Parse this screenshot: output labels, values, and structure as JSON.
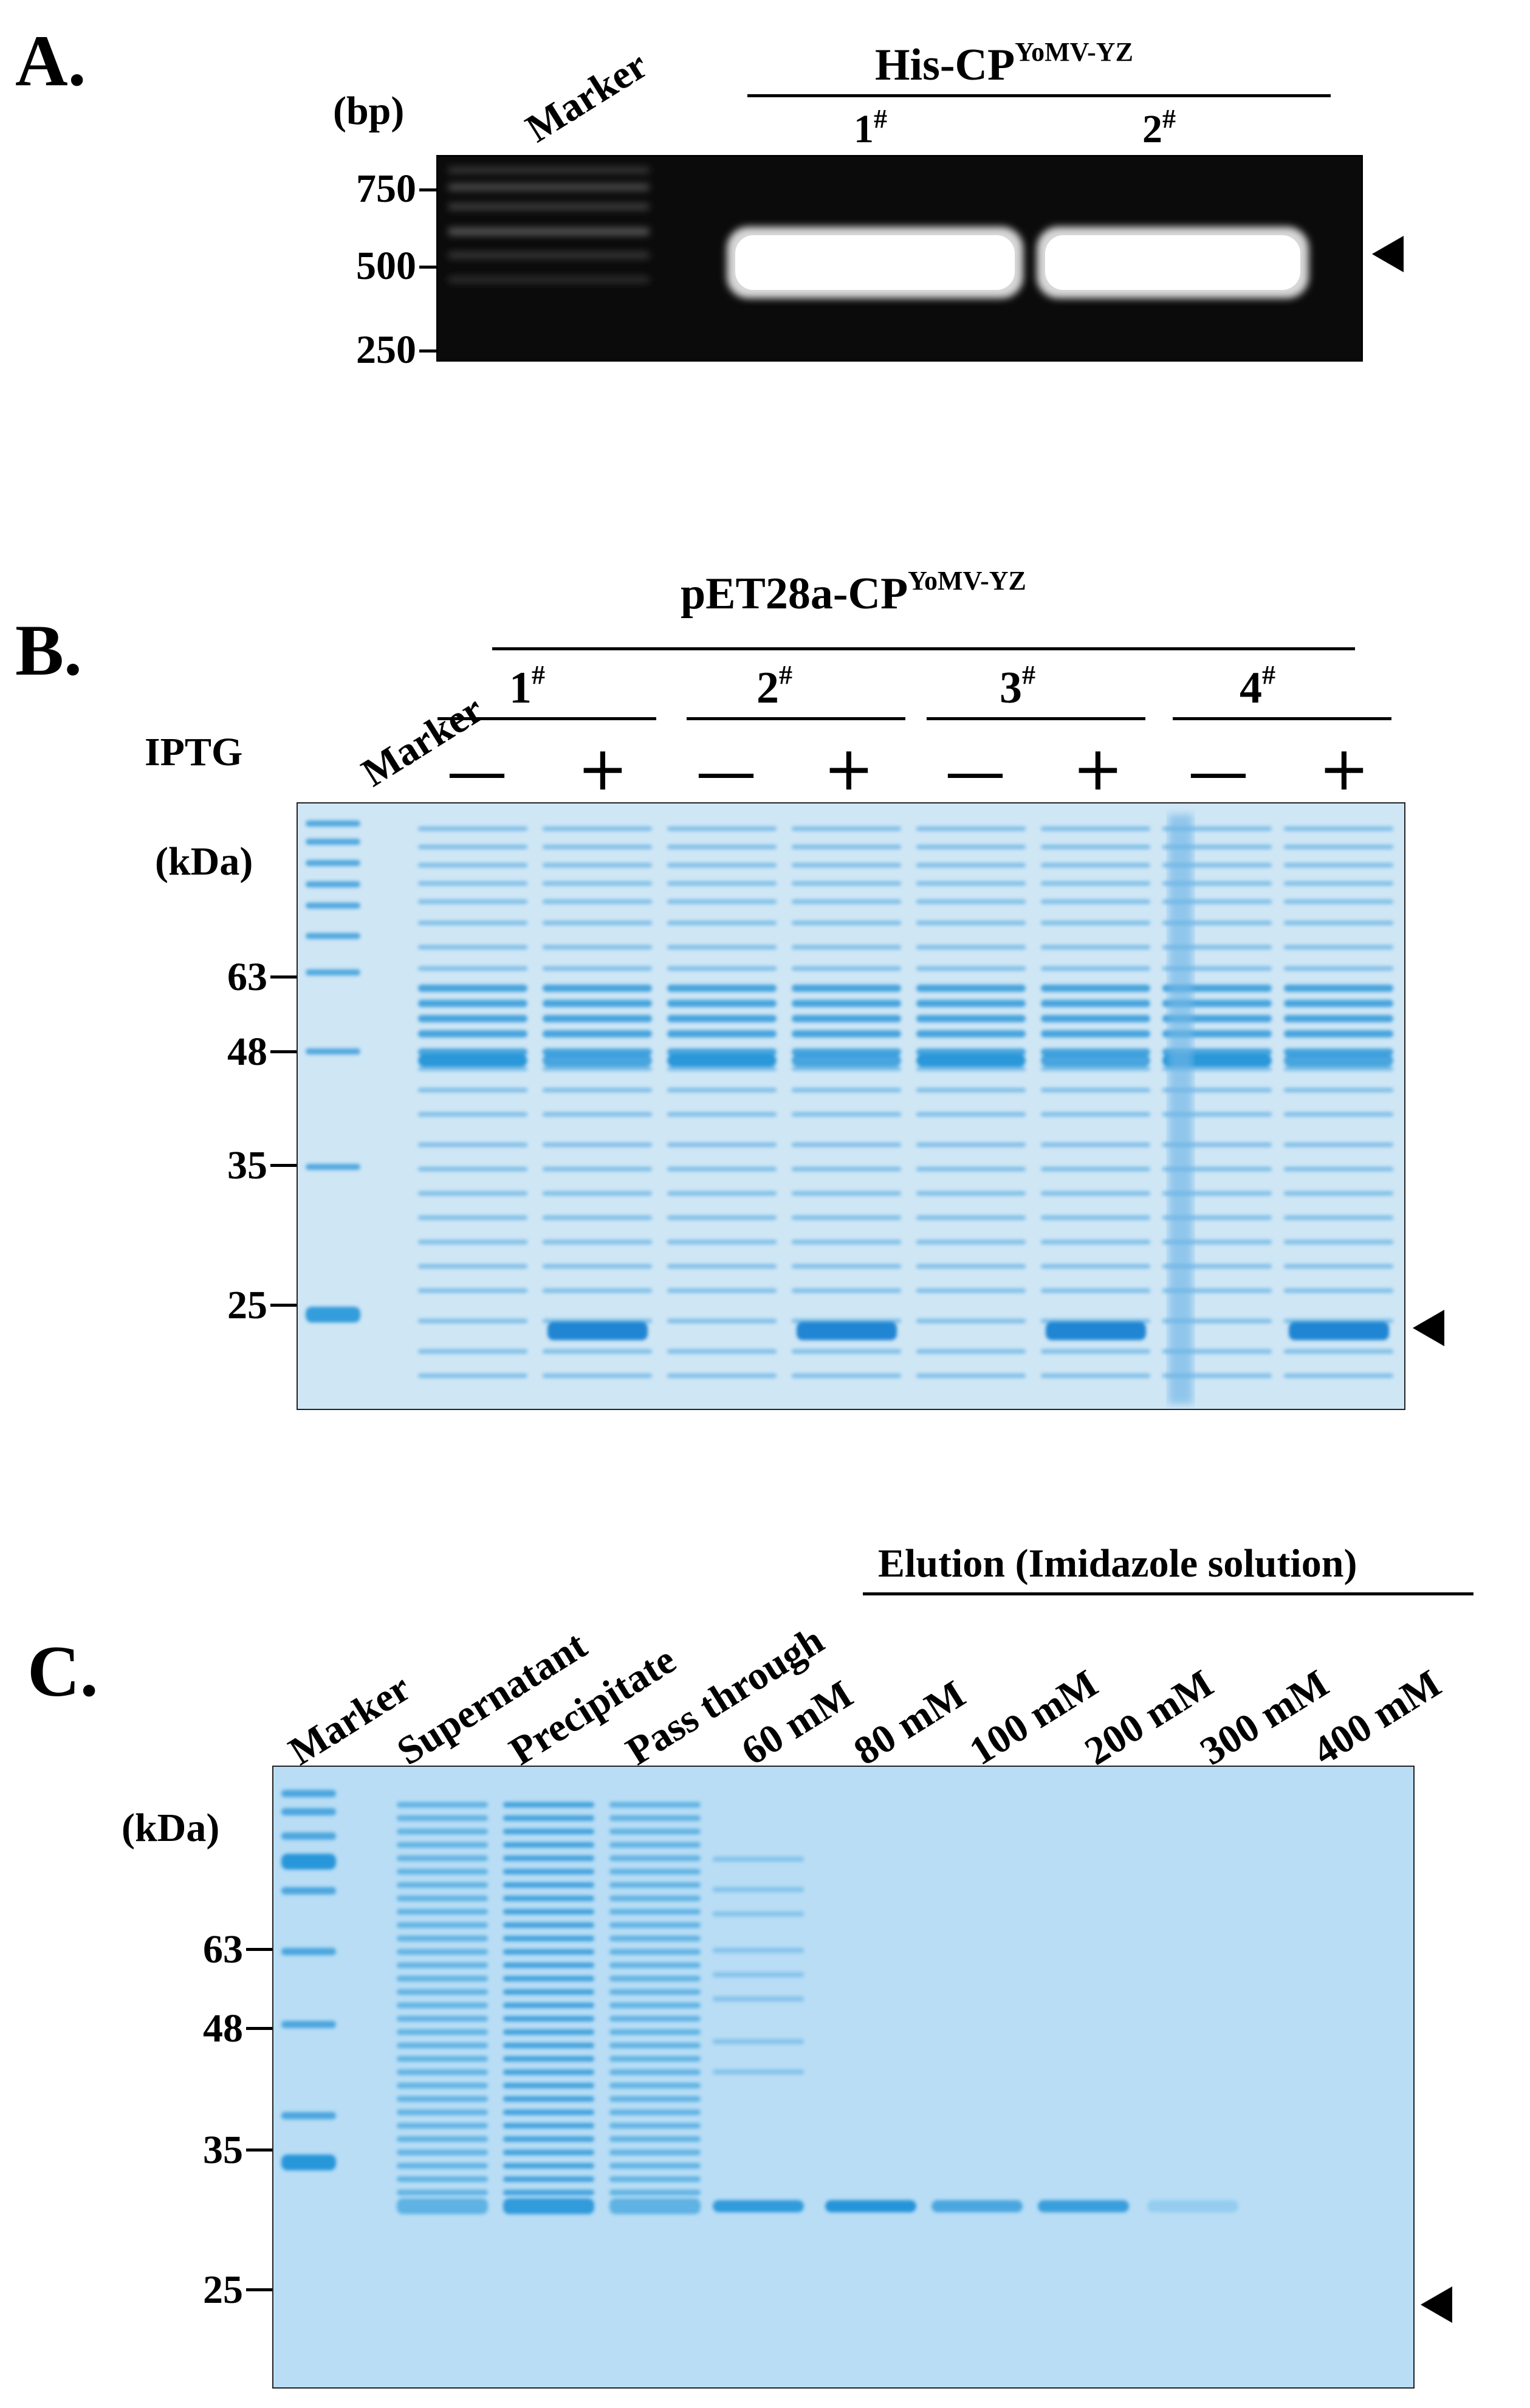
{
  "panels": {
    "A": {
      "label": "A.",
      "unit": "(bp)",
      "marker_label": "Marker",
      "group_title_main": "His-CP",
      "group_title_sup": "YoMV-YZ",
      "lanes": [
        {
          "num": "1",
          "sup": "#"
        },
        {
          "num": "2",
          "sup": "#"
        }
      ],
      "ticks": [
        "750",
        "500",
        "250"
      ]
    },
    "B": {
      "label": "B.",
      "unit": "(kDa)",
      "marker_label": "Marker",
      "iptg_label": "IPTG",
      "group_title_main": "pET28a-CP",
      "group_title_sup": "YoMV-YZ",
      "clones": [
        {
          "num": "1",
          "sup": "#"
        },
        {
          "num": "2",
          "sup": "#"
        },
        {
          "num": "3",
          "sup": "#"
        },
        {
          "num": "4",
          "sup": "#"
        }
      ],
      "minus_symbol": "—",
      "plus_symbol": "+",
      "ticks": [
        "63",
        "48",
        "35",
        "25"
      ]
    },
    "C": {
      "label": "C.",
      "unit": "(kDa)",
      "elution_title": "Elution (Imidazole solution)",
      "lane_labels": [
        "Marker",
        "Supernatant",
        "Precipitate",
        "Pass through",
        "60 mM",
        "80 mM",
        "100 mM",
        "200 mM",
        "300 mM",
        "400 mM"
      ],
      "ticks": [
        "63",
        "48",
        "35",
        "25"
      ]
    }
  },
  "colors": {
    "gel_dark": "#0a0a0a",
    "dna_band": "#ffffff",
    "sds_background": "#c9e3f4",
    "protein_band": "#1a8fd6"
  }
}
